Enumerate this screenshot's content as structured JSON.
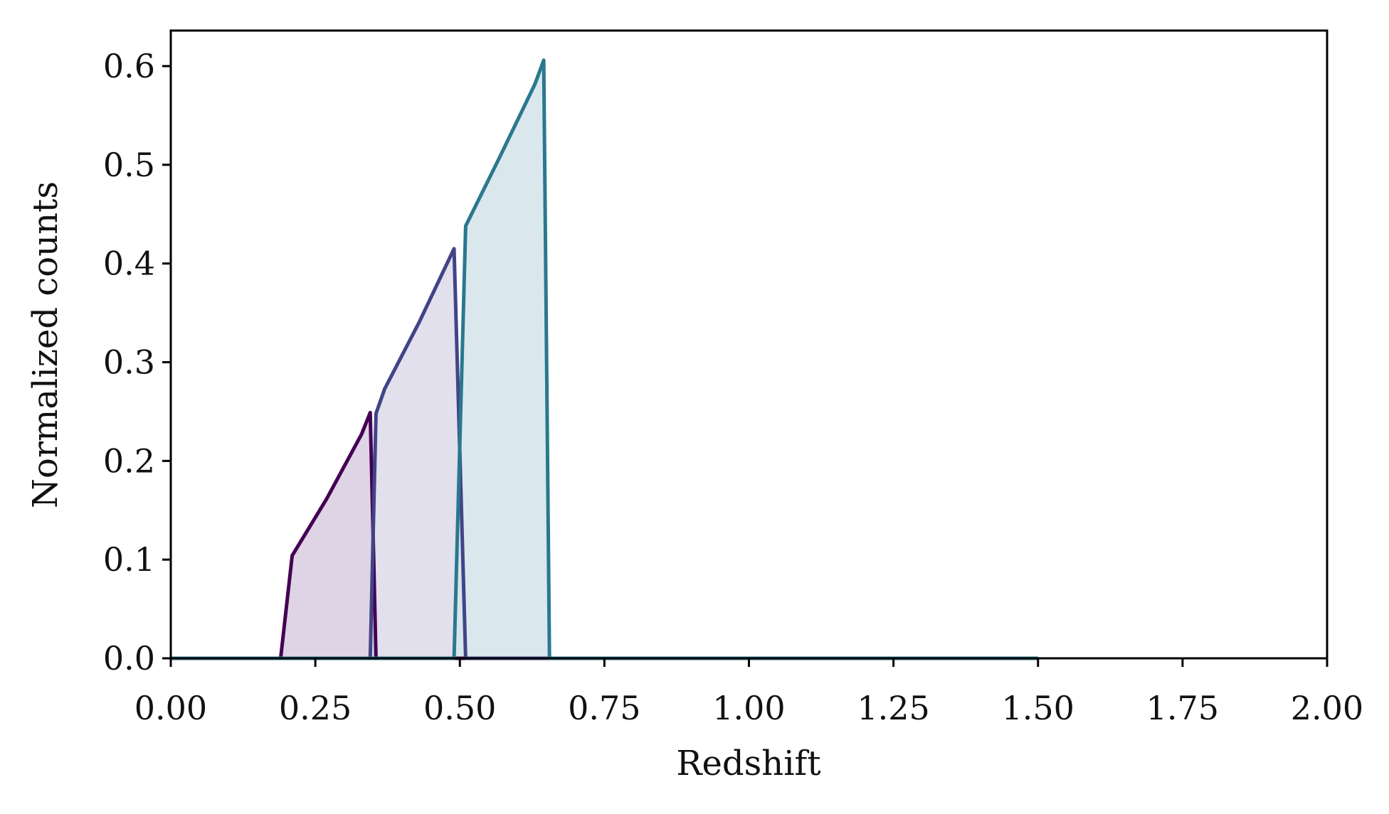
{
  "chart_data": {
    "type": "area",
    "xlabel": "Redshift",
    "ylabel": "Normalized counts",
    "xlim": [
      0,
      2
    ],
    "ylim": [
      0,
      0.636
    ],
    "xticks": [
      0,
      0.25,
      0.5,
      0.75,
      1.0,
      1.25,
      1.5,
      1.75,
      2.0
    ],
    "xtick_labels": [
      "0.00",
      "0.25",
      "0.50",
      "0.75",
      "1.00",
      "1.25",
      "1.50",
      "1.75",
      "2.00"
    ],
    "yticks": [
      0,
      0.1,
      0.2,
      0.3,
      0.4,
      0.5,
      0.6
    ],
    "ytick_labels": [
      "0.0",
      "0.1",
      "0.2",
      "0.3",
      "0.4",
      "0.5",
      "0.6"
    ],
    "grid": false,
    "legend": "none",
    "series": [
      {
        "color": "#440154",
        "fill": "#d9cce0",
        "x": [
          0,
          0.19,
          0.21,
          0.27,
          0.33,
          0.345,
          0.355,
          1.5
        ],
        "y": [
          0,
          0,
          0.104,
          0.162,
          0.227,
          0.249,
          0,
          0
        ]
      },
      {
        "color": "#414487",
        "fill": "#dcdae9",
        "x": [
          0,
          0.345,
          0.355,
          0.37,
          0.43,
          0.49,
          0.51,
          1.5
        ],
        "y": [
          0,
          0,
          0.248,
          0.273,
          0.341,
          0.415,
          0,
          0
        ]
      },
      {
        "color": "#2a788e",
        "fill": "#d4e4eb",
        "x": [
          0,
          0.49,
          0.51,
          0.57,
          0.63,
          0.645,
          0.655,
          1.5
        ],
        "y": [
          0,
          0,
          0.438,
          0.509,
          0.582,
          0.606,
          0,
          0
        ]
      }
    ]
  }
}
